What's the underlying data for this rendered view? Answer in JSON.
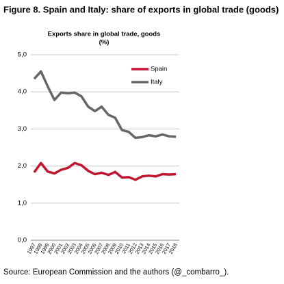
{
  "chart_data": {
    "type": "line",
    "title": "Figure 8. Spain and Italy: share of exports in global trade (goods)",
    "subtitle": "Exports share in global trade, goods",
    "y_label": "(%)",
    "source": "Source: European Commission and the authors (@_combarro_).",
    "categories": [
      "1997",
      "1998",
      "1999",
      "2000",
      "2001",
      "2002",
      "2003",
      "2004",
      "2005",
      "2006",
      "2007",
      "2008",
      "2009",
      "2010",
      "2011",
      "2012",
      "2013",
      "2014",
      "2015",
      "2016",
      "2017",
      "2018"
    ],
    "series": [
      {
        "name": "Spain",
        "color": "#c0152f",
        "values": [
          1.83,
          2.08,
          1.85,
          1.8,
          1.9,
          1.95,
          2.08,
          2.02,
          1.87,
          1.78,
          1.82,
          1.76,
          1.84,
          1.69,
          1.7,
          1.63,
          1.72,
          1.74,
          1.72,
          1.78,
          1.77,
          1.78
        ]
      },
      {
        "name": "Italy",
        "color": "#666666",
        "values": [
          4.35,
          4.55,
          4.15,
          3.78,
          3.98,
          3.96,
          3.98,
          3.88,
          3.6,
          3.48,
          3.6,
          3.38,
          3.3,
          2.97,
          2.92,
          2.76,
          2.78,
          2.83,
          2.8,
          2.85,
          2.8,
          2.79
        ]
      }
    ],
    "ylim": [
      0,
      5
    ],
    "yticks": [
      {
        "value": 0,
        "label": "0,0"
      },
      {
        "value": 1,
        "label": "1,0"
      },
      {
        "value": 2,
        "label": "2,0"
      },
      {
        "value": 3,
        "label": "3,0"
      },
      {
        "value": 4,
        "label": "4,0"
      },
      {
        "value": 5,
        "label": "5,0"
      }
    ],
    "grid": true,
    "legend": "upper right"
  }
}
